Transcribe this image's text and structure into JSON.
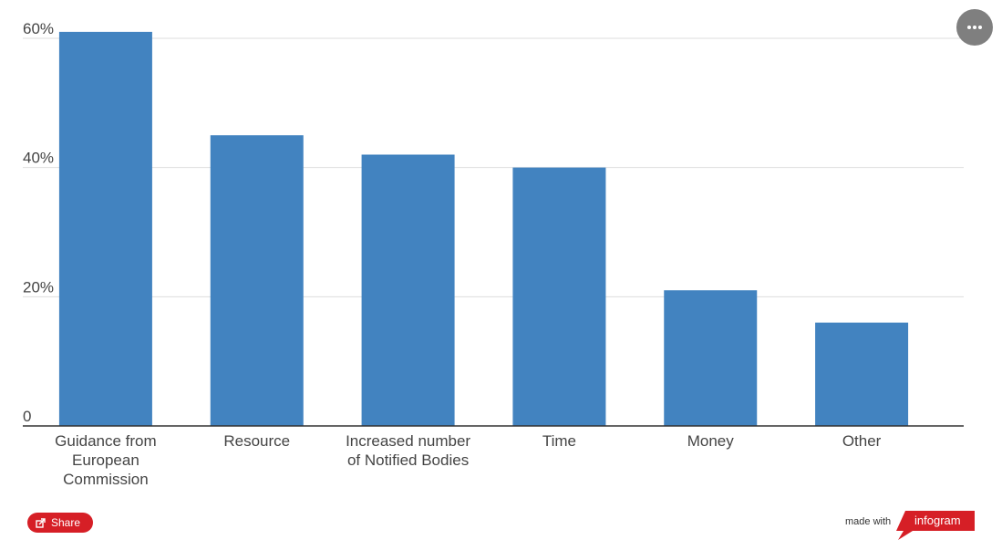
{
  "chart_data": {
    "type": "bar",
    "categories": [
      [
        "Guidance from",
        "European",
        "Commission"
      ],
      [
        "Resource"
      ],
      [
        "Increased number",
        "of Notified Bodies"
      ],
      [
        "Time"
      ],
      [
        "Money"
      ],
      [
        "Other"
      ]
    ],
    "values": [
      61,
      45,
      42,
      40,
      21,
      16
    ],
    "yticks": [
      {
        "value": 0,
        "label": "0"
      },
      {
        "value": 20,
        "label": "20%"
      },
      {
        "value": 40,
        "label": "40%"
      },
      {
        "value": 60,
        "label": "60%"
      }
    ],
    "ylim": [
      0,
      60
    ],
    "grid": true,
    "bar_color": "#4283c0"
  },
  "toolbar": {
    "more_icon": "ellipsis-icon",
    "share_label": "Share",
    "share_icon": "share-icon"
  },
  "footer": {
    "made_with": "made with",
    "brand": "infogram",
    "brand_color": "#d61f26"
  }
}
